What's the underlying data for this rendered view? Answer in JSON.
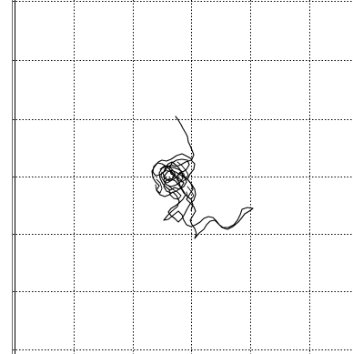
{
  "colors": {
    "background": "#ffffff",
    "grid": "#000000",
    "frame": "#000000",
    "trace": "#000000"
  },
  "grid": {
    "line_style": "dotted",
    "columns": 6,
    "rows": 6
  },
  "trace": {
    "name": "movement-trajectory"
  }
}
